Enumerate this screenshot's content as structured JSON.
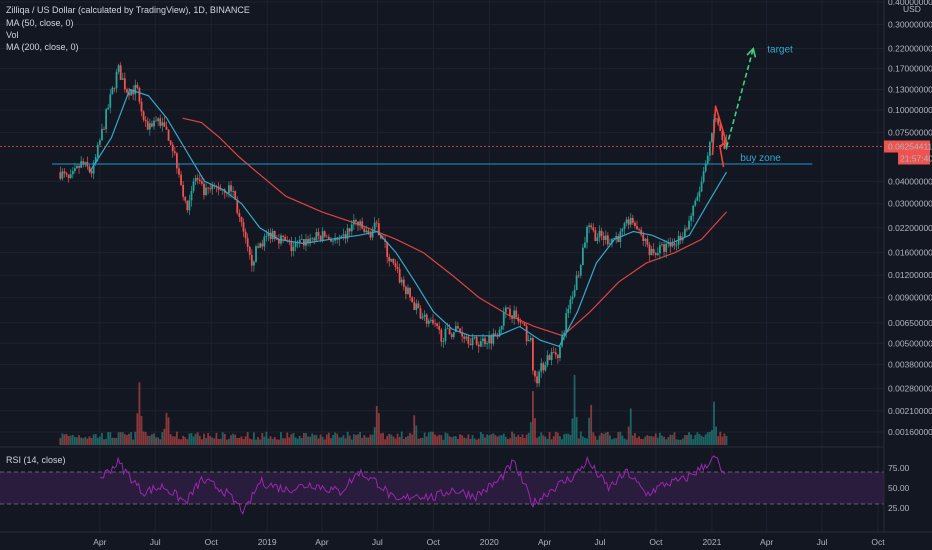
{
  "legend": {
    "title": "Zilliqa / US Dollar (calculated by TradingView), 1D, BINANCE",
    "ma50": "MA (50, close, 0)",
    "vol": "Vol",
    "ma200": "MA (200, close, 0)",
    "rsi": "RSI (14, close)"
  },
  "colors": {
    "background": "#131722",
    "up": "#26a69a",
    "down": "#ef5350",
    "ma50": "#35a8c9",
    "ma200": "#e0433f",
    "rsi": "#9c27b0",
    "rsi_band": "#2a1c3c",
    "target_arrow": "#3fd17e",
    "pattern": "#f44336",
    "buy_zone_line": "#2196c9"
  },
  "chart_data": [
    {
      "type": "candlestick",
      "scale": "log",
      "price_axis_unit": "USD",
      "y_ticks": [
        "0.40000000",
        "0.30000000",
        "0.22000000",
        "0.17000000",
        "0.13000000",
        "0.10000000",
        "0.07500000",
        "0.04000000",
        "0.03000000",
        "0.02200000",
        "0.01600000",
        "0.01200000",
        "0.00900000",
        "0.00650000",
        "0.00500000",
        "0.00380000",
        "0.00280000",
        "0.00210000",
        "0.00160000"
      ],
      "y_tick_values": [
        0.4,
        0.3,
        0.22,
        0.17,
        0.13,
        0.1,
        0.075,
        0.04,
        0.03,
        0.022,
        0.016,
        0.012,
        0.009,
        0.0065,
        0.005,
        0.0038,
        0.0028,
        0.0021,
        0.0016
      ],
      "x_ticks": [
        "Apr",
        "Jul",
        "Oct",
        "2019",
        "Apr",
        "Jul",
        "Oct",
        "2020",
        "Apr",
        "Jul",
        "Oct",
        "2021",
        "Apr",
        "Jul",
        "Oct"
      ],
      "x_tick_dates": [
        "2018-04-01",
        "2018-07-01",
        "2018-10-01",
        "2019-01-01",
        "2019-04-01",
        "2019-07-01",
        "2019-10-01",
        "2020-01-01",
        "2020-04-01",
        "2020-07-01",
        "2020-10-01",
        "2021-01-01",
        "2021-04-01",
        "2021-07-01",
        "2021-10-01"
      ],
      "last_price": "0.06254411",
      "countdown": "21:57:40",
      "price_path": [
        {
          "date": "2018-01-26",
          "close": 0.045
        },
        {
          "date": "2018-02-10",
          "close": 0.04
        },
        {
          "date": "2018-03-01",
          "close": 0.05
        },
        {
          "date": "2018-03-20",
          "close": 0.045
        },
        {
          "date": "2018-04-10",
          "close": 0.09
        },
        {
          "date": "2018-05-01",
          "close": 0.17
        },
        {
          "date": "2018-05-15",
          "close": 0.13
        },
        {
          "date": "2018-06-01",
          "close": 0.13
        },
        {
          "date": "2018-06-15",
          "close": 0.08
        },
        {
          "date": "2018-07-05",
          "close": 0.09
        },
        {
          "date": "2018-07-25",
          "close": 0.07
        },
        {
          "date": "2018-08-10",
          "close": 0.045
        },
        {
          "date": "2018-08-20",
          "close": 0.028
        },
        {
          "date": "2018-09-05",
          "close": 0.042
        },
        {
          "date": "2018-09-20",
          "close": 0.034
        },
        {
          "date": "2018-10-10",
          "close": 0.037
        },
        {
          "date": "2018-11-05",
          "close": 0.036
        },
        {
          "date": "2018-11-20",
          "close": 0.022
        },
        {
          "date": "2018-12-05",
          "close": 0.014
        },
        {
          "date": "2018-12-20",
          "close": 0.018
        },
        {
          "date": "2019-01-10",
          "close": 0.021
        },
        {
          "date": "2019-02-10",
          "close": 0.017
        },
        {
          "date": "2019-03-10",
          "close": 0.019
        },
        {
          "date": "2019-04-05",
          "close": 0.02
        },
        {
          "date": "2019-05-01",
          "close": 0.018
        },
        {
          "date": "2019-05-25",
          "close": 0.024
        },
        {
          "date": "2019-06-15",
          "close": 0.02
        },
        {
          "date": "2019-07-01",
          "close": 0.023
        },
        {
          "date": "2019-07-20",
          "close": 0.015
        },
        {
          "date": "2019-08-10",
          "close": 0.011
        },
        {
          "date": "2019-09-01",
          "close": 0.008
        },
        {
          "date": "2019-09-25",
          "close": 0.0065
        },
        {
          "date": "2019-10-15",
          "close": 0.0055
        },
        {
          "date": "2019-11-10",
          "close": 0.006
        },
        {
          "date": "2019-12-10",
          "close": 0.005
        },
        {
          "date": "2020-01-10",
          "close": 0.0055
        },
        {
          "date": "2020-02-01",
          "close": 0.008
        },
        {
          "date": "2020-02-20",
          "close": 0.0065
        },
        {
          "date": "2020-03-10",
          "close": 0.005
        },
        {
          "date": "2020-03-15",
          "close": 0.003
        },
        {
          "date": "2020-04-05",
          "close": 0.0042
        },
        {
          "date": "2020-04-25",
          "close": 0.0045
        },
        {
          "date": "2020-05-10",
          "close": 0.008
        },
        {
          "date": "2020-05-25",
          "close": 0.012
        },
        {
          "date": "2020-06-10",
          "close": 0.022
        },
        {
          "date": "2020-06-25",
          "close": 0.02
        },
        {
          "date": "2020-07-15",
          "close": 0.019
        },
        {
          "date": "2020-08-05",
          "close": 0.02
        },
        {
          "date": "2020-08-20",
          "close": 0.025
        },
        {
          "date": "2020-09-05",
          "close": 0.02
        },
        {
          "date": "2020-09-25",
          "close": 0.016
        },
        {
          "date": "2020-10-15",
          "close": 0.017
        },
        {
          "date": "2020-11-01",
          "close": 0.018
        },
        {
          "date": "2020-11-20",
          "close": 0.022
        },
        {
          "date": "2020-12-05",
          "close": 0.03
        },
        {
          "date": "2020-12-20",
          "close": 0.045
        },
        {
          "date": "2021-01-01",
          "close": 0.07
        },
        {
          "date": "2021-01-07",
          "close": 0.1
        },
        {
          "date": "2021-01-18",
          "close": 0.065
        },
        {
          "date": "2021-01-25",
          "close": 0.06254411
        }
      ],
      "ma50_path": [
        {
          "date": "2018-03-15",
          "value": 0.045
        },
        {
          "date": "2018-04-20",
          "value": 0.07
        },
        {
          "date": "2018-05-20",
          "value": 0.13
        },
        {
          "date": "2018-06-20",
          "value": 0.12
        },
        {
          "date": "2018-07-20",
          "value": 0.09
        },
        {
          "date": "2018-08-20",
          "value": 0.06
        },
        {
          "date": "2018-09-20",
          "value": 0.04
        },
        {
          "date": "2018-10-20",
          "value": 0.036
        },
        {
          "date": "2018-11-20",
          "value": 0.03
        },
        {
          "date": "2018-12-20",
          "value": 0.022
        },
        {
          "date": "2019-01-20",
          "value": 0.019
        },
        {
          "date": "2019-03-01",
          "value": 0.018
        },
        {
          "date": "2019-04-15",
          "value": 0.019
        },
        {
          "date": "2019-06-01",
          "value": 0.02
        },
        {
          "date": "2019-07-01",
          "value": 0.021
        },
        {
          "date": "2019-08-01",
          "value": 0.016
        },
        {
          "date": "2019-09-01",
          "value": 0.011
        },
        {
          "date": "2019-10-01",
          "value": 0.0075
        },
        {
          "date": "2019-11-01",
          "value": 0.006
        },
        {
          "date": "2019-12-01",
          "value": 0.0055
        },
        {
          "date": "2020-01-15",
          "value": 0.0055
        },
        {
          "date": "2020-02-20",
          "value": 0.0062
        },
        {
          "date": "2020-03-25",
          "value": 0.0052
        },
        {
          "date": "2020-04-25",
          "value": 0.0048
        },
        {
          "date": "2020-05-25",
          "value": 0.0075
        },
        {
          "date": "2020-06-25",
          "value": 0.014
        },
        {
          "date": "2020-07-25",
          "value": 0.019
        },
        {
          "date": "2020-08-25",
          "value": 0.021
        },
        {
          "date": "2020-09-25",
          "value": 0.02
        },
        {
          "date": "2020-10-25",
          "value": 0.018
        },
        {
          "date": "2020-11-25",
          "value": 0.02
        },
        {
          "date": "2020-12-25",
          "value": 0.03
        },
        {
          "date": "2021-01-25",
          "value": 0.045
        }
      ],
      "ma200_path": [
        {
          "date": "2018-08-15",
          "value": 0.09
        },
        {
          "date": "2018-09-15",
          "value": 0.085
        },
        {
          "date": "2018-10-15",
          "value": 0.07
        },
        {
          "date": "2018-11-15",
          "value": 0.055
        },
        {
          "date": "2018-12-15",
          "value": 0.045
        },
        {
          "date": "2019-02-01",
          "value": 0.033
        },
        {
          "date": "2019-04-01",
          "value": 0.027
        },
        {
          "date": "2019-06-01",
          "value": 0.023
        },
        {
          "date": "2019-08-01",
          "value": 0.019
        },
        {
          "date": "2019-09-15",
          "value": 0.016
        },
        {
          "date": "2019-11-01",
          "value": 0.012
        },
        {
          "date": "2019-12-15",
          "value": 0.009
        },
        {
          "date": "2020-02-01",
          "value": 0.0072
        },
        {
          "date": "2020-03-15",
          "value": 0.0062
        },
        {
          "date": "2020-05-01",
          "value": 0.0055
        },
        {
          "date": "2020-06-15",
          "value": 0.0075
        },
        {
          "date": "2020-08-01",
          "value": 0.011
        },
        {
          "date": "2020-09-15",
          "value": 0.014
        },
        {
          "date": "2020-11-01",
          "value": 0.016
        },
        {
          "date": "2020-12-15",
          "value": 0.019
        },
        {
          "date": "2021-01-25",
          "value": 0.027
        }
      ],
      "annotations": {
        "buy_zone": {
          "label": "buy zone",
          "price": 0.05,
          "from": "2018-01-01",
          "to": "2021-06-15"
        },
        "target": {
          "label": "target",
          "from_date": "2021-01-25",
          "from_price": 0.062,
          "to_date": "2021-03-10",
          "to_price": 0.22
        },
        "pattern": [
          {
            "date": "2021-01-02",
            "price": 0.056
          },
          {
            "date": "2021-01-07",
            "price": 0.105
          },
          {
            "date": "2021-01-25",
            "price": 0.066
          },
          {
            "date": "2021-01-14",
            "price": 0.063
          },
          {
            "date": "2021-01-20",
            "price": 0.048
          }
        ]
      },
      "volume_peaks": [
        {
          "date": "2018-06-05",
          "level": 0.9
        },
        {
          "date": "2018-07-20",
          "level": 0.65
        },
        {
          "date": "2019-07-01",
          "level": 0.75
        },
        {
          "date": "2019-09-01",
          "level": 0.5
        },
        {
          "date": "2020-03-13",
          "level": 0.8
        },
        {
          "date": "2020-05-20",
          "level": 0.9
        },
        {
          "date": "2020-06-15",
          "level": 0.75
        },
        {
          "date": "2020-08-20",
          "level": 0.55
        },
        {
          "date": "2021-01-05",
          "level": 0.7
        }
      ]
    },
    {
      "type": "line",
      "title": "RSI (14, close)",
      "y_ticks": [
        "75.00",
        "50.00",
        "25.00"
      ],
      "y_tick_values": [
        75,
        50,
        25
      ],
      "upper_band": 70,
      "lower_band": 30,
      "ylim": [
        10,
        95
      ],
      "values": [
        {
          "date": "2018-04-01",
          "value": 62
        },
        {
          "date": "2018-05-01",
          "value": 82
        },
        {
          "date": "2018-06-10",
          "value": 45
        },
        {
          "date": "2018-07-15",
          "value": 52
        },
        {
          "date": "2018-08-20",
          "value": 32
        },
        {
          "date": "2018-09-15",
          "value": 60
        },
        {
          "date": "2018-10-20",
          "value": 48
        },
        {
          "date": "2018-11-25",
          "value": 20
        },
        {
          "date": "2018-12-20",
          "value": 58
        },
        {
          "date": "2019-02-01",
          "value": 48
        },
        {
          "date": "2019-03-15",
          "value": 55
        },
        {
          "date": "2019-05-01",
          "value": 45
        },
        {
          "date": "2019-06-01",
          "value": 70
        },
        {
          "date": "2019-07-05",
          "value": 55
        },
        {
          "date": "2019-08-01",
          "value": 32
        },
        {
          "date": "2019-09-01",
          "value": 42
        },
        {
          "date": "2019-10-01",
          "value": 38
        },
        {
          "date": "2019-11-01",
          "value": 48
        },
        {
          "date": "2019-12-10",
          "value": 40
        },
        {
          "date": "2020-01-15",
          "value": 58
        },
        {
          "date": "2020-02-10",
          "value": 82
        },
        {
          "date": "2020-03-13",
          "value": 30
        },
        {
          "date": "2020-04-15",
          "value": 50
        },
        {
          "date": "2020-05-20",
          "value": 65
        },
        {
          "date": "2020-06-10",
          "value": 84
        },
        {
          "date": "2020-07-15",
          "value": 50
        },
        {
          "date": "2020-08-15",
          "value": 70
        },
        {
          "date": "2020-09-15",
          "value": 42
        },
        {
          "date": "2020-10-15",
          "value": 55
        },
        {
          "date": "2020-11-15",
          "value": 60
        },
        {
          "date": "2020-12-15",
          "value": 75
        },
        {
          "date": "2021-01-07",
          "value": 88
        },
        {
          "date": "2021-01-25",
          "value": 58
        }
      ]
    }
  ]
}
